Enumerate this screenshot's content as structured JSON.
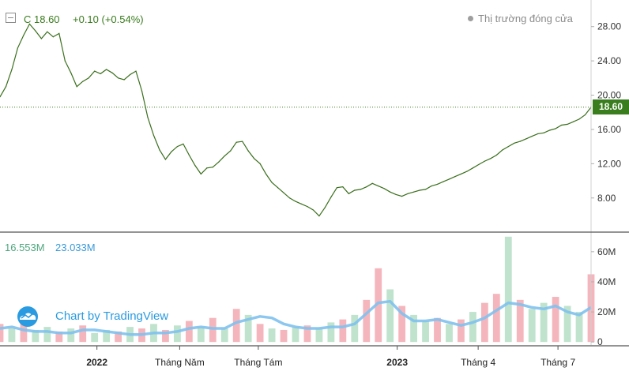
{
  "header": {
    "close_label": "C 18.60",
    "change_label": "+0.10 (+0.54%)",
    "market_status": "Thị trường đóng cửa"
  },
  "volume_header": {
    "value_1": "16.553M",
    "value_2": "23.033M"
  },
  "watermark": "Chart by TradingView",
  "colors": {
    "price_line": "#3a6f1c",
    "last_price_bg": "#3a7d1e",
    "volume_up": "#bfe3cd",
    "volume_down": "#f4b6bc",
    "volume_ma": "#7fc1ee",
    "volume_ma_label": "#3a9ad9",
    "volume_label": "#4fa77f"
  },
  "icons": {
    "collapse": "collapse-square-icon",
    "logo": "tradingview-cloud-logo-icon",
    "status_dot": "status-dot-icon"
  },
  "chart_data": [
    {
      "type": "line",
      "name": "price",
      "last_value": 18.6,
      "last_value_label": "18.60",
      "yticks": [
        8,
        12,
        16,
        20,
        24,
        28
      ],
      "ytick_labels": [
        "8.00",
        "12.00",
        "16.00",
        "20.00",
        "24.00",
        "28.00"
      ],
      "ylim": [
        4.2,
        30.0
      ],
      "xlim": [
        0,
        100
      ],
      "grid": false,
      "x": [
        0,
        1,
        2,
        3,
        4,
        5,
        6,
        7,
        8,
        9,
        10,
        11,
        12,
        13,
        14,
        15,
        16,
        17,
        18,
        19,
        20,
        21,
        22,
        23,
        24,
        25,
        26,
        27,
        28,
        29,
        30,
        31,
        32,
        33,
        34,
        35,
        36,
        37,
        38,
        39,
        40,
        41,
        42,
        43,
        44,
        45,
        46,
        47,
        48,
        49,
        50,
        51,
        52,
        53,
        54,
        55,
        56,
        57,
        58,
        59,
        60,
        61,
        62,
        63,
        64,
        65,
        66,
        67,
        68,
        69,
        70,
        71,
        72,
        73,
        74,
        75,
        76,
        77,
        78,
        79,
        80,
        81,
        82,
        83,
        84,
        85,
        86,
        87,
        88,
        89,
        90,
        91,
        92,
        93,
        94,
        95,
        96,
        97,
        98,
        99,
        100
      ],
      "y": [
        19.8,
        21.0,
        23.0,
        25.5,
        27.0,
        28.3,
        27.5,
        26.6,
        27.4,
        26.8,
        27.2,
        24.0,
        22.6,
        21.0,
        21.6,
        22.0,
        22.8,
        22.5,
        23.0,
        22.6,
        22.0,
        21.8,
        22.4,
        22.8,
        20.5,
        17.4,
        15.3,
        13.6,
        12.5,
        13.4,
        14.0,
        14.3,
        13.0,
        11.8,
        10.8,
        11.5,
        11.6,
        12.2,
        12.9,
        13.5,
        14.5,
        14.6,
        13.5,
        12.6,
        12.0,
        10.8,
        9.8,
        9.2,
        8.6,
        8.0,
        7.6,
        7.3,
        7.0,
        6.6,
        5.9,
        6.9,
        8.1,
        9.2,
        9.3,
        8.5,
        8.9,
        9.0,
        9.3,
        9.7,
        9.4,
        9.1,
        8.7,
        8.4,
        8.2,
        8.5,
        8.7,
        8.9,
        9.0,
        9.4,
        9.6,
        9.9,
        10.2,
        10.5,
        10.8,
        11.1,
        11.5,
        11.9,
        12.3,
        12.6,
        13.0,
        13.6,
        14.0,
        14.4,
        14.6,
        14.9,
        15.2,
        15.5,
        15.6,
        15.9,
        16.1,
        16.5,
        16.6,
        16.9,
        17.2,
        17.7,
        18.6
      ]
    },
    {
      "type": "bar",
      "name": "volume",
      "yticks": [
        0,
        20,
        40,
        60
      ],
      "ytick_labels": [
        "0",
        "20M",
        "40M",
        "60M"
      ],
      "ylim": [
        -2,
        72
      ],
      "xlim": [
        0,
        100
      ],
      "grid": false,
      "x": [
        0,
        2,
        4,
        6,
        8,
        10,
        12,
        14,
        16,
        18,
        20,
        22,
        24,
        26,
        28,
        30,
        32,
        34,
        36,
        38,
        40,
        42,
        44,
        46,
        48,
        50,
        52,
        54,
        56,
        58,
        60,
        62,
        64,
        66,
        68,
        70,
        72,
        74,
        76,
        78,
        80,
        82,
        84,
        86,
        88,
        90,
        92,
        94,
        96,
        98,
        100
      ],
      "values": [
        12,
        9,
        14,
        8,
        10,
        7,
        9,
        11,
        6,
        8,
        7,
        10,
        9,
        12,
        8,
        11,
        14,
        10,
        16,
        9,
        22,
        18,
        12,
        9,
        8,
        10,
        11,
        9,
        13,
        15,
        18,
        28,
        49,
        35,
        24,
        18,
        14,
        16,
        12,
        15,
        20,
        26,
        32,
        70,
        28,
        22,
        26,
        30,
        24,
        20,
        45
      ],
      "directions": [
        "down",
        "up",
        "down",
        "up",
        "up",
        "down",
        "up",
        "down",
        "up",
        "up",
        "down",
        "up",
        "down",
        "up",
        "down",
        "up",
        "down",
        "up",
        "down",
        "up",
        "down",
        "up",
        "down",
        "up",
        "down",
        "up",
        "down",
        "up",
        "up",
        "down",
        "up",
        "down",
        "down",
        "up",
        "down",
        "up",
        "up",
        "down",
        "up",
        "down",
        "up",
        "down",
        "down",
        "up",
        "down",
        "up",
        "up",
        "down",
        "up",
        "up",
        "down"
      ],
      "ma_values": [
        9,
        10,
        8,
        7,
        7,
        6,
        6,
        8,
        8,
        7,
        6,
        5,
        5,
        6,
        6,
        7,
        9,
        10,
        9,
        9,
        13,
        15,
        17,
        16,
        12,
        10,
        9,
        9,
        10,
        10,
        12,
        19,
        26,
        27,
        19,
        14,
        14,
        15,
        13,
        11,
        13,
        16,
        21,
        26,
        25,
        23,
        22,
        24,
        20,
        18,
        23
      ]
    }
  ],
  "x_axis": {
    "ticks": [
      {
        "x": 16.4,
        "label": "2022"
      },
      {
        "x": 30.4,
        "label": "Tháng Năm"
      },
      {
        "x": 43.7,
        "label": "Tháng Tám"
      },
      {
        "x": 67.2,
        "label": "2023"
      },
      {
        "x": 80.9,
        "label": "Tháng 4"
      },
      {
        "x": 94.4,
        "label": "Tháng 7"
      }
    ]
  }
}
